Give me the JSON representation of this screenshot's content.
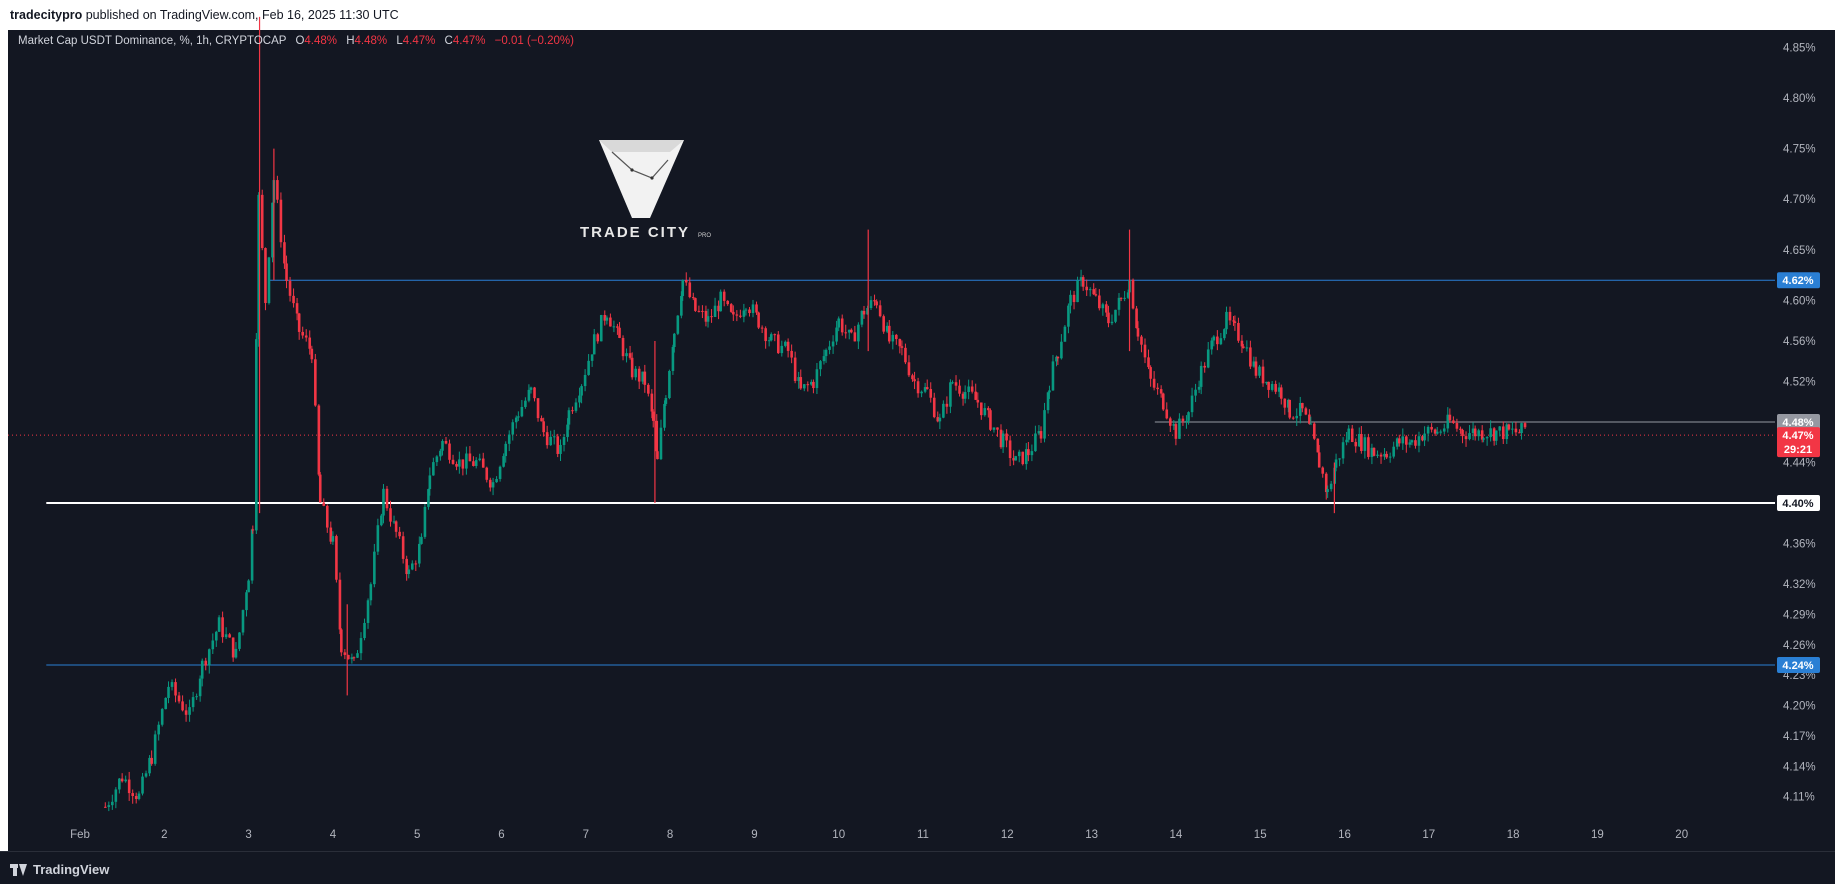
{
  "header": {
    "publisher": "tradecitypro",
    "published_text": "published on TradingView.com, Feb 16, 2025 11:30 UTC"
  },
  "legend": {
    "symbol": "Market Cap USDT Dominance, %, 1h, CRYPTOCAP",
    "open_label": "O",
    "open": "4.48%",
    "high_label": "H",
    "high": "4.48%",
    "low_label": "L",
    "low": "4.47%",
    "close_label": "C",
    "close": "4.47%",
    "change": "−0.01 (−0.20%)"
  },
  "watermark": {
    "name": "TRADE CITY",
    "sub": "PRO"
  },
  "footer": {
    "brand": "TradingView"
  },
  "colors": {
    "up": "#089981",
    "down": "#f23645",
    "background": "#131722",
    "level_line": "#2962ff",
    "support_line": "#ffffff"
  },
  "chart_data": {
    "type": "candlestick",
    "timeframe": "1h",
    "y_unit": "%",
    "ylim": [
      4.085,
      4.875
    ],
    "grid": false,
    "y_ticks": [
      "4.85%",
      "4.80%",
      "4.75%",
      "4.70%",
      "4.65%",
      "4.60%",
      "4.56%",
      "4.52%",
      "4.44%",
      "4.36%",
      "4.32%",
      "4.29%",
      "4.26%",
      "4.23%",
      "4.20%",
      "4.17%",
      "4.14%",
      "4.11%"
    ],
    "x_ticks": [
      "Feb",
      "2",
      "3",
      "4",
      "5",
      "6",
      "7",
      "8",
      "9",
      "10",
      "11",
      "12",
      "13",
      "14",
      "15",
      "16",
      "17",
      "18",
      "19",
      "20"
    ],
    "x_range_days": [
      0.6,
      20.9
    ],
    "horizontal_levels": [
      {
        "value": 4.62,
        "label": "4.62%",
        "from_day": 3.25,
        "style": "blue"
      },
      {
        "value": 4.24,
        "label": "4.24%",
        "from_day": 0.6,
        "style": "blue"
      },
      {
        "value": 4.4,
        "label": "4.40%",
        "from_day": 0.6,
        "style": "white"
      },
      {
        "value": 4.48,
        "label": "4.48%",
        "from_day": 13.75,
        "style": "grey"
      }
    ],
    "current_price": {
      "value": 4.47,
      "label": "4.47%",
      "countdown": "29:21"
    },
    "path": [
      [
        1.3,
        4.1
      ],
      [
        1.5,
        4.13
      ],
      [
        1.7,
        4.11
      ],
      [
        1.85,
        4.15
      ],
      [
        2.05,
        4.22
      ],
      [
        2.3,
        4.19
      ],
      [
        2.45,
        4.24
      ],
      [
        2.65,
        4.28
      ],
      [
        2.85,
        4.25
      ],
      [
        3.0,
        4.33
      ],
      [
        3.05,
        4.38
      ],
      [
        3.12,
        4.7
      ],
      [
        3.2,
        4.6
      ],
      [
        3.3,
        4.72
      ],
      [
        3.45,
        4.62
      ],
      [
        3.6,
        4.57
      ],
      [
        3.75,
        4.55
      ],
      [
        3.85,
        4.4
      ],
      [
        4.0,
        4.36
      ],
      [
        4.1,
        4.26
      ],
      [
        4.25,
        4.24
      ],
      [
        4.45,
        4.32
      ],
      [
        4.6,
        4.41
      ],
      [
        4.75,
        4.37
      ],
      [
        4.9,
        4.33
      ],
      [
        5.05,
        4.36
      ],
      [
        5.15,
        4.43
      ],
      [
        5.3,
        4.46
      ],
      [
        5.5,
        4.44
      ],
      [
        5.7,
        4.44
      ],
      [
        5.9,
        4.42
      ],
      [
        6.05,
        4.46
      ],
      [
        6.2,
        4.49
      ],
      [
        6.35,
        4.51
      ],
      [
        6.5,
        4.47
      ],
      [
        6.7,
        4.45
      ],
      [
        6.8,
        4.49
      ],
      [
        6.95,
        4.52
      ],
      [
        7.1,
        4.56
      ],
      [
        7.25,
        4.59
      ],
      [
        7.4,
        4.56
      ],
      [
        7.55,
        4.53
      ],
      [
        7.7,
        4.52
      ],
      [
        7.8,
        4.48
      ],
      [
        7.85,
        4.44
      ],
      [
        7.95,
        4.51
      ],
      [
        8.05,
        4.57
      ],
      [
        8.15,
        4.62
      ],
      [
        8.3,
        4.59
      ],
      [
        8.45,
        4.58
      ],
      [
        8.6,
        4.6
      ],
      [
        8.75,
        4.58
      ],
      [
        8.9,
        4.6
      ],
      [
        9.05,
        4.58
      ],
      [
        9.2,
        4.56
      ],
      [
        9.4,
        4.55
      ],
      [
        9.55,
        4.51
      ],
      [
        9.7,
        4.52
      ],
      [
        9.85,
        4.55
      ],
      [
        10.0,
        4.58
      ],
      [
        10.15,
        4.56
      ],
      [
        10.3,
        4.59
      ],
      [
        10.45,
        4.6
      ],
      [
        10.6,
        4.56
      ],
      [
        10.75,
        4.55
      ],
      [
        10.9,
        4.52
      ],
      [
        11.05,
        4.51
      ],
      [
        11.2,
        4.48
      ],
      [
        11.35,
        4.52
      ],
      [
        11.5,
        4.51
      ],
      [
        11.65,
        4.5
      ],
      [
        11.8,
        4.48
      ],
      [
        11.95,
        4.46
      ],
      [
        12.1,
        4.44
      ],
      [
        12.25,
        4.45
      ],
      [
        12.4,
        4.47
      ],
      [
        12.5,
        4.52
      ],
      [
        12.6,
        4.55
      ],
      [
        12.75,
        4.6
      ],
      [
        12.9,
        4.62
      ],
      [
        13.05,
        4.6
      ],
      [
        13.2,
        4.58
      ],
      [
        13.35,
        4.6
      ],
      [
        13.45,
        4.62
      ],
      [
        13.55,
        4.57
      ],
      [
        13.7,
        4.52
      ],
      [
        13.85,
        4.5
      ],
      [
        14.0,
        4.47
      ],
      [
        14.15,
        4.49
      ],
      [
        14.3,
        4.53
      ],
      [
        14.45,
        4.56
      ],
      [
        14.6,
        4.58
      ],
      [
        14.7,
        4.57
      ],
      [
        14.8,
        4.56
      ],
      [
        14.95,
        4.53
      ],
      [
        15.1,
        4.52
      ],
      [
        15.25,
        4.51
      ],
      [
        15.35,
        4.49
      ],
      [
        15.5,
        4.49
      ],
      [
        15.6,
        4.47
      ],
      [
        15.7,
        4.44
      ],
      [
        15.8,
        4.41
      ],
      [
        15.9,
        4.44
      ],
      [
        16.05,
        4.47
      ],
      [
        16.2,
        4.46
      ],
      [
        16.35,
        4.45
      ],
      [
        16.5,
        4.45
      ],
      [
        16.65,
        4.46
      ],
      [
        16.8,
        4.46
      ],
      [
        16.95,
        4.47
      ],
      [
        17.1,
        4.47
      ],
      [
        17.25,
        4.48
      ],
      [
        17.4,
        4.47
      ],
      [
        17.55,
        4.47
      ],
      [
        17.65,
        4.47
      ],
      [
        17.8,
        4.47
      ],
      [
        17.95,
        4.47
      ],
      [
        18.1,
        4.47
      ],
      [
        18.15,
        4.475
      ]
    ],
    "spikes": [
      {
        "day": 3.13,
        "high": 4.88,
        "low": 4.39
      },
      {
        "day": 3.3,
        "high": 4.75,
        "low": 4.62
      },
      {
        "day": 4.17,
        "high": 4.3,
        "low": 4.21
      },
      {
        "day": 7.82,
        "high": 4.56,
        "low": 4.4
      },
      {
        "day": 10.35,
        "high": 4.67,
        "low": 4.55
      },
      {
        "day": 13.45,
        "high": 4.67,
        "low": 4.55
      },
      {
        "day": 15.88,
        "high": 4.44,
        "low": 4.39
      }
    ]
  }
}
